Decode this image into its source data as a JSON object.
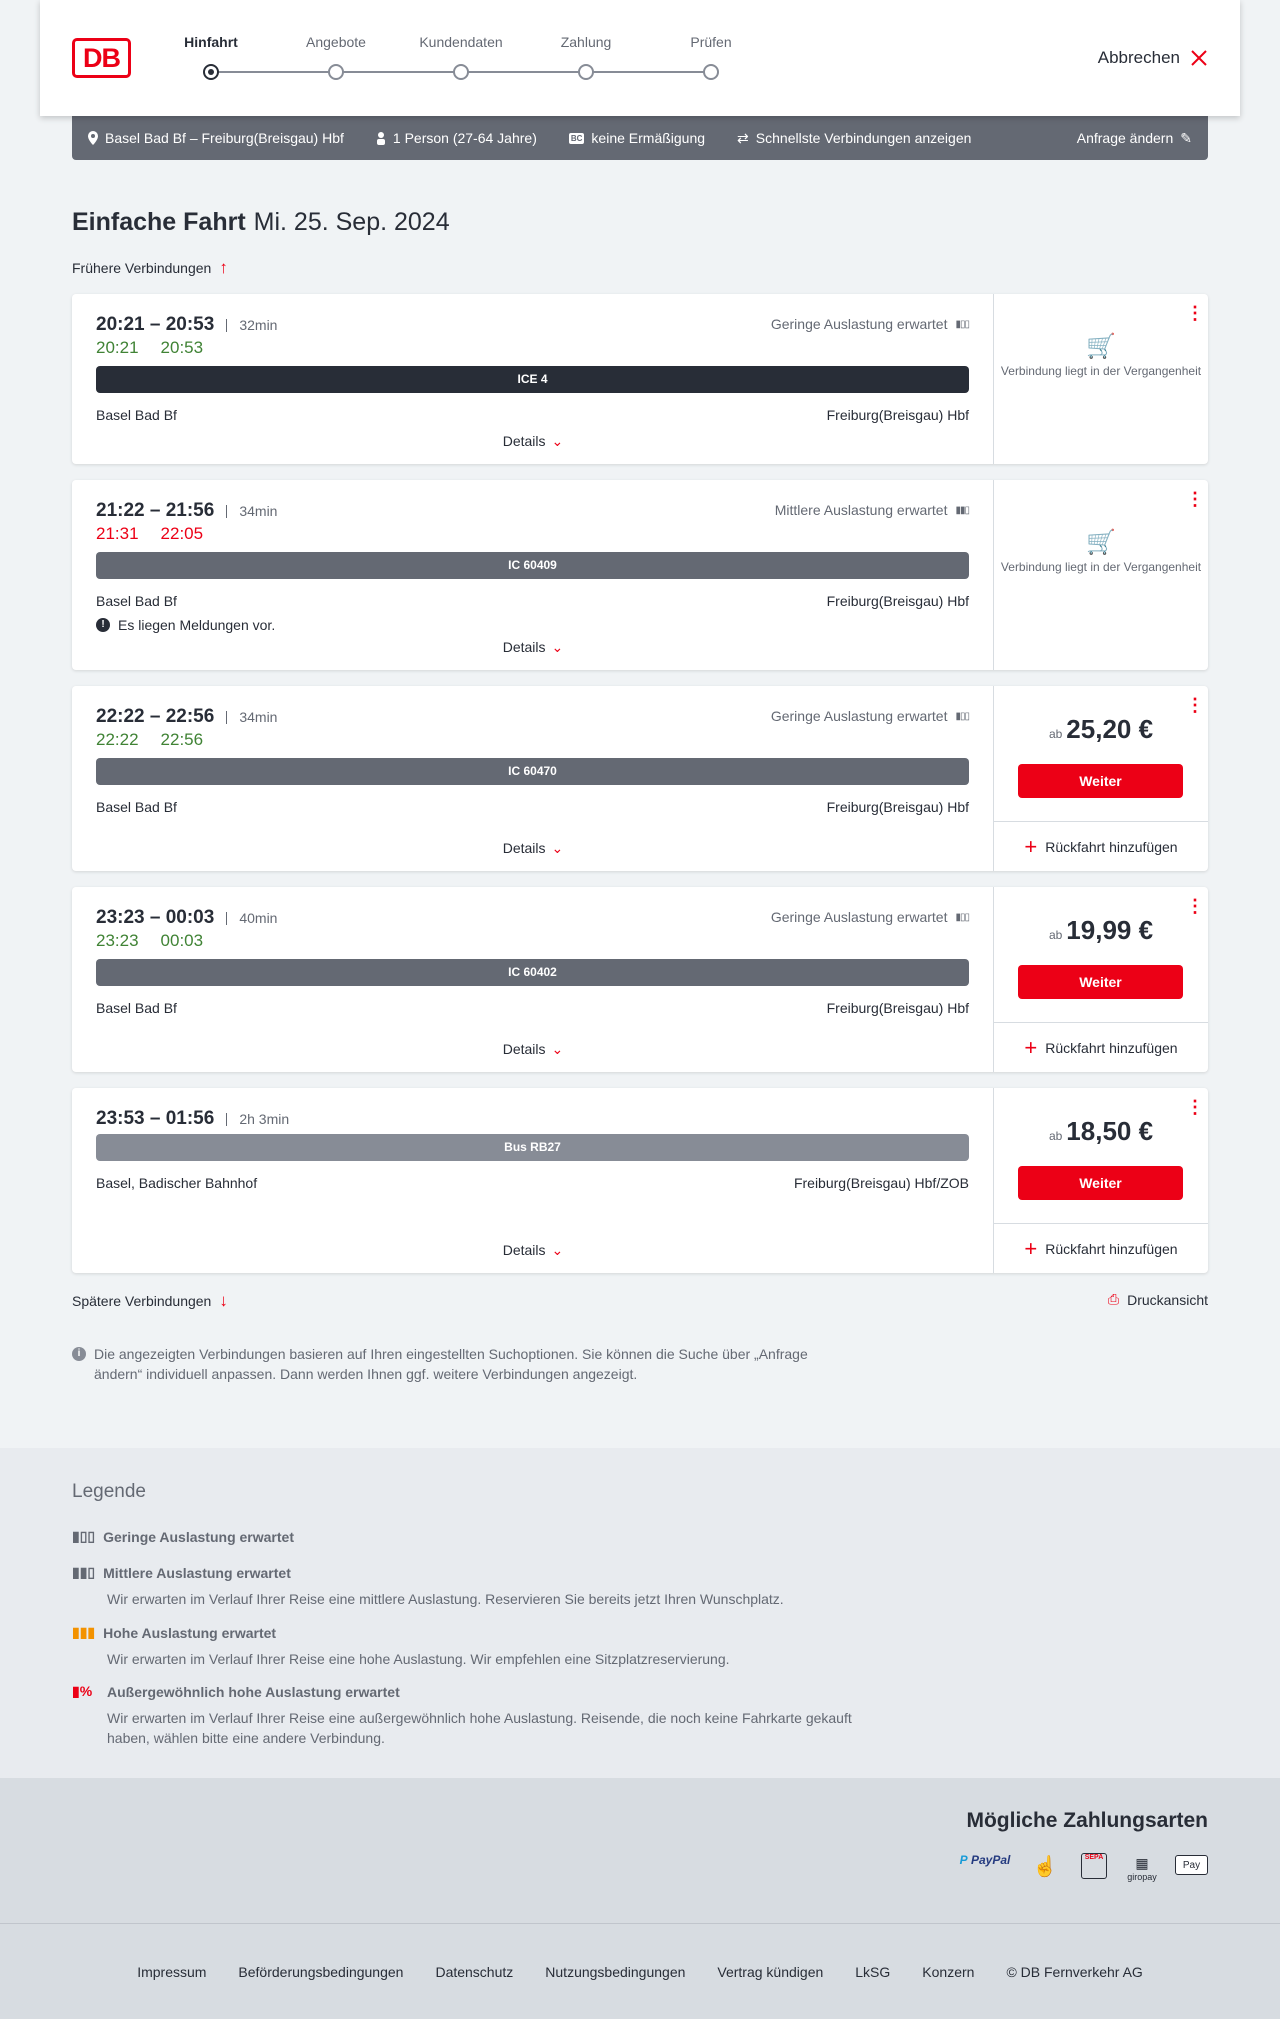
{
  "header": {
    "logo": "DB",
    "steps": [
      "Hinfahrt",
      "Angebote",
      "Kundendaten",
      "Zahlung",
      "Prüfen"
    ],
    "active_step": 0,
    "cancel": "Abbrechen"
  },
  "infobar": {
    "route": "Basel Bad Bf – Freiburg(Breisgau) Hbf",
    "persons": "1 Person (27-64 Jahre)",
    "discount": "keine Ermäßigung",
    "fastest": "Schnellste Verbindungen anzeigen",
    "edit": "Anfrage ändern"
  },
  "title": {
    "type": "Einfache Fahrt",
    "date": "Mi. 25. Sep. 2024"
  },
  "earlier": "Frühere Verbindungen",
  "later": "Spätere Verbindungen",
  "print": "Druckansicht",
  "labels": {
    "details": "Details",
    "past": "Verbindung liegt in der Vergangenheit",
    "ab": "ab",
    "weiter": "Weiter",
    "return": "Rückfahrt hinzufügen"
  },
  "connections": [
    {
      "times": "20:21 – 20:53",
      "duration": "32min",
      "rt_dep": "20:21",
      "rt_arr": "20:53",
      "rt_color": "#408335",
      "load": "Geringe Auslastung erwartet",
      "train": "ICE 4",
      "train_color": "#282d37",
      "from": "Basel Bad Bf",
      "to": "Freiburg(Breisgau) Hbf",
      "past": true
    },
    {
      "times": "21:22 – 21:56",
      "duration": "34min",
      "rt_dep": "21:31",
      "rt_arr": "22:05",
      "rt_color": "#ec0016",
      "load": "Mittlere Auslastung erwartet",
      "train": "IC 60409",
      "train_color": "#646973",
      "from": "Basel Bad Bf",
      "to": "Freiburg(Breisgau) Hbf",
      "message": "Es liegen Meldungen vor.",
      "past": true
    },
    {
      "times": "22:22 – 22:56",
      "duration": "34min",
      "rt_dep": "22:22",
      "rt_arr": "22:56",
      "rt_color": "#408335",
      "load": "Geringe Auslastung erwartet",
      "train": "IC 60470",
      "train_color": "#646973",
      "from": "Basel Bad Bf",
      "to": "Freiburg(Breisgau) Hbf",
      "price": "25,20 €"
    },
    {
      "times": "23:23 – 00:03",
      "duration": "40min",
      "rt_dep": "23:23",
      "rt_arr": "00:03",
      "rt_color": "#408335",
      "load": "Geringe Auslastung erwartet",
      "train": "IC 60402",
      "train_color": "#646973",
      "from": "Basel Bad Bf",
      "to": "Freiburg(Breisgau) Hbf",
      "price": "19,99 €"
    },
    {
      "times": "23:53 – 01:56",
      "duration": "2h 3min",
      "train": "Bus RB27",
      "train_color": "#878c96",
      "from": "Basel, Badischer Bahnhof",
      "to": "Freiburg(Breisgau) Hbf/ZOB",
      "price": "18,50 €"
    }
  ],
  "info_note": "Die angezeigten Verbindungen basieren auf Ihren eingestellten Suchoptionen. Sie können die Suche über „Anfrage ändern“ individuell anpassen. Dann werden Ihnen ggf. weitere Verbindungen angezeigt.",
  "legend": {
    "title": "Legende",
    "items": [
      {
        "title": "Geringe Auslastung erwartet",
        "text": ""
      },
      {
        "title": "Mittlere Auslastung erwartet",
        "text": "Wir erwarten im Verlauf Ihrer Reise eine mittlere Auslastung. Reservieren Sie bereits jetzt Ihren Wunschplatz."
      },
      {
        "title": "Hohe Auslastung erwartet",
        "text": "Wir erwarten im Verlauf Ihrer Reise eine hohe Auslastung. Wir empfehlen eine Sitzplatzreservierung."
      },
      {
        "title": "Außergewöhnlich hohe Auslastung erwartet",
        "text": "Wir erwarten im Verlauf Ihrer Reise eine außergewöhnlich hohe Auslastung. Reisende, die noch keine Fahrkarte gekauft haben, wählen bitte eine andere Verbindung."
      }
    ]
  },
  "payment": {
    "title": "Mögliche Zahlungsarten",
    "methods": [
      "PayPal",
      "Kreditkarte",
      "SEPA",
      "giropay",
      "Apple Pay"
    ]
  },
  "footer": [
    "Impressum",
    "Beförderungsbedingungen",
    "Datenschutz",
    "Nutzungsbedingungen",
    "Vertrag kündigen",
    "LkSG",
    "Konzern",
    "© DB Fernverkehr AG"
  ],
  "colors": {
    "accent": "#ec0016",
    "on_time": "#408335",
    "bar_dark": "#282d37",
    "bar_gray": "#646973"
  }
}
